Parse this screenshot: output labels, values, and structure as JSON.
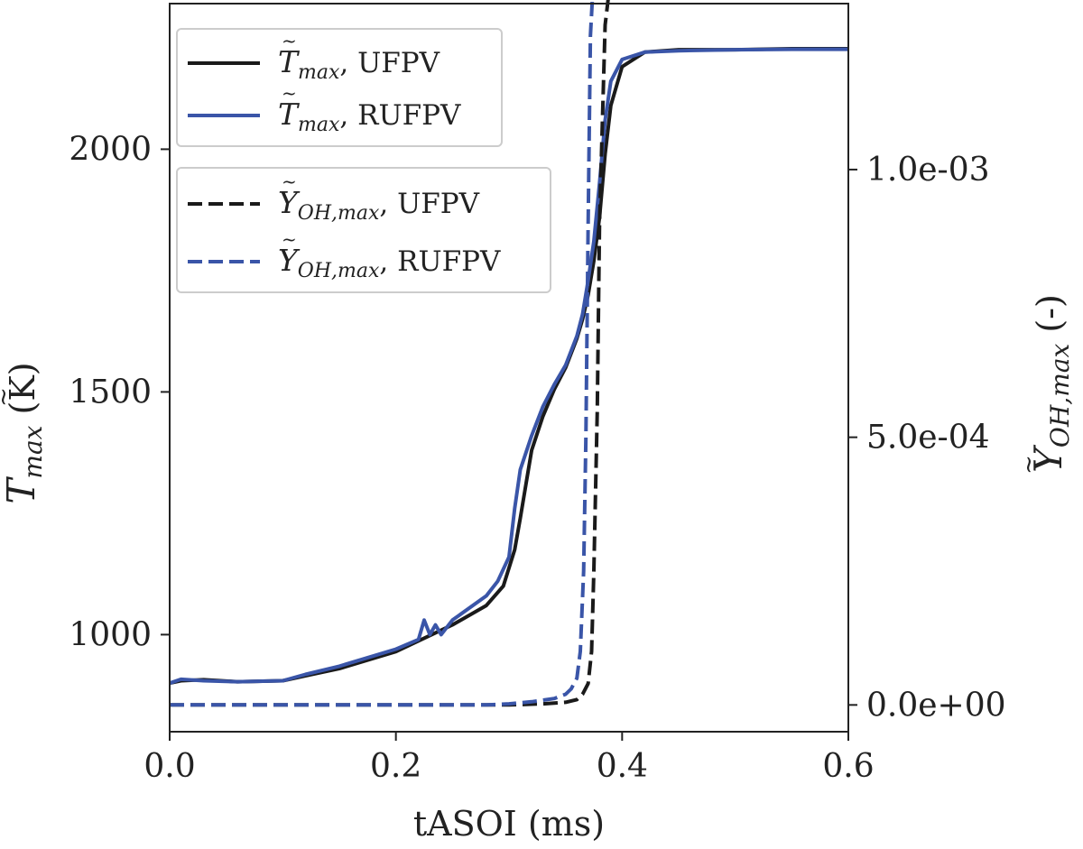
{
  "chart_data": {
    "type": "line",
    "xlabel": "tASOI (ms)",
    "ylabel_left": {
      "symbol": "T",
      "sub": "max",
      "unit": " (K)"
    },
    "ylabel_right": {
      "symbol": "Y",
      "sub": "OH,max",
      "unit": " (-)"
    },
    "xlim": [
      0.0,
      0.6
    ],
    "ylim_left": [
      800,
      2300
    ],
    "ylim_right": [
      -5e-05,
      0.00131
    ],
    "x_ticks": [
      "0.0",
      "0.2",
      "0.4",
      "0.6"
    ],
    "y_left_ticks": [
      "1000",
      "1500",
      "2000"
    ],
    "y_right_ticks": [
      "0.0e+00",
      "5.0e-04",
      "1.0e-03"
    ],
    "grid": false,
    "legends": [
      {
        "placement": "top-left",
        "entries": [
          {
            "series": 0,
            "sym": "T",
            "sub": "max",
            "text": ", UFPV"
          },
          {
            "series": 1,
            "sym": "T",
            "sub": "max",
            "text": ", RUFPV"
          }
        ]
      },
      {
        "placement": "upper-left",
        "entries": [
          {
            "series": 2,
            "sym": "Y",
            "sub": "OH,max",
            "text": ", UFPV"
          },
          {
            "series": 3,
            "sym": "Y",
            "sub": "OH,max",
            "text": ", RUFPV"
          }
        ]
      }
    ],
    "series": [
      {
        "name": "T_max, UFPV",
        "axis": "left",
        "color": "#1a1a1a",
        "dash": "solid",
        "x": [
          0.0,
          0.01,
          0.03,
          0.06,
          0.1,
          0.12,
          0.15,
          0.2,
          0.25,
          0.28,
          0.295,
          0.305,
          0.31,
          0.315,
          0.32,
          0.33,
          0.34,
          0.35,
          0.36,
          0.365,
          0.37,
          0.375,
          0.38,
          0.385,
          0.39,
          0.4,
          0.42,
          0.45,
          0.5,
          0.55,
          0.6
        ],
        "y": [
          900,
          905,
          907,
          903,
          905,
          915,
          930,
          965,
          1020,
          1060,
          1100,
          1175,
          1240,
          1310,
          1380,
          1450,
          1505,
          1550,
          1610,
          1650,
          1700,
          1770,
          1860,
          1990,
          2090,
          2170,
          2200,
          2205,
          2205,
          2207,
          2207
        ]
      },
      {
        "name": "T_max, RUFPV",
        "axis": "left",
        "color": "#3a55a8",
        "dash": "solid",
        "x": [
          0.0,
          0.01,
          0.03,
          0.06,
          0.1,
          0.12,
          0.15,
          0.2,
          0.22,
          0.225,
          0.23,
          0.235,
          0.24,
          0.25,
          0.28,
          0.29,
          0.3,
          0.305,
          0.31,
          0.32,
          0.33,
          0.34,
          0.35,
          0.36,
          0.365,
          0.37,
          0.375,
          0.38,
          0.385,
          0.39,
          0.4,
          0.42,
          0.45,
          0.5,
          0.55,
          0.6
        ],
        "y": [
          900,
          908,
          905,
          903,
          905,
          918,
          935,
          970,
          990,
          1030,
          1000,
          1020,
          1000,
          1030,
          1080,
          1110,
          1160,
          1260,
          1340,
          1410,
          1470,
          1515,
          1555,
          1615,
          1660,
          1730,
          1810,
          1930,
          2060,
          2140,
          2185,
          2200,
          2203,
          2205,
          2206,
          2206
        ]
      },
      {
        "name": "Y_OH,max, UFPV",
        "axis": "right",
        "color": "#1a1a1a",
        "dash": "dashed",
        "x": [
          0.0,
          0.1,
          0.2,
          0.3,
          0.33,
          0.35,
          0.36,
          0.365,
          0.37,
          0.373,
          0.375,
          0.378,
          0.38,
          0.385,
          0.39,
          0.4,
          0.42,
          0.45,
          0.5,
          0.55,
          0.6
        ],
        "y": [
          0.0,
          0.0,
          0.0,
          0.0,
          2e-06,
          5e-06,
          1e-05,
          2e-05,
          4e-05,
          0.0001,
          0.00025,
          0.00055,
          0.0009,
          0.00127,
          0.00136,
          0.0014,
          0.00141,
          0.00141,
          0.00141,
          0.00141,
          0.00141
        ]
      },
      {
        "name": "Y_OH,max, RUFPV",
        "axis": "right",
        "color": "#3a55a8",
        "dash": "dashed",
        "x": [
          0.0,
          0.1,
          0.2,
          0.28,
          0.3,
          0.32,
          0.34,
          0.35,
          0.355,
          0.36,
          0.363,
          0.366,
          0.368,
          0.37,
          0.372,
          0.375,
          0.378,
          0.38,
          0.39,
          0.4,
          0.42,
          0.45,
          0.5,
          0.55,
          0.6
        ],
        "y": [
          0.0,
          0.0,
          0.0,
          0.0,
          2e-06,
          6e-06,
          1.2e-05,
          2e-05,
          3e-05,
          5e-05,
          0.0001,
          0.00025,
          0.0005,
          0.0009,
          0.00125,
          0.00137,
          0.0014,
          0.0014,
          0.00141,
          0.00141,
          0.00141,
          0.00141,
          0.00141,
          0.00141,
          0.00141
        ]
      }
    ]
  }
}
